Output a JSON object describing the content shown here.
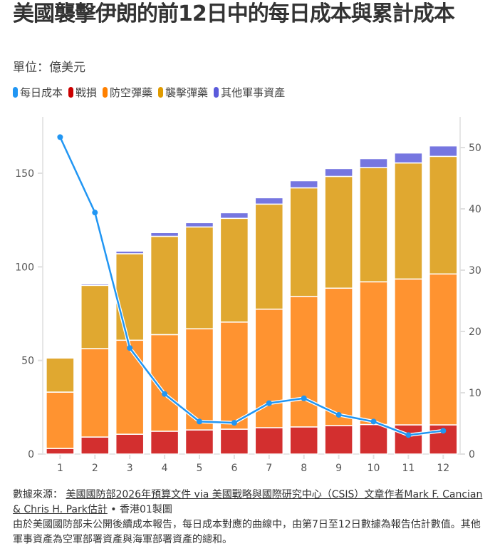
{
  "title": "美國襲擊伊朗的前12日中的每日成本與累計成本",
  "subtitle": "單位：億美元",
  "footer": {
    "source_label": "數據來源：",
    "source_link": "美國國防部2026年預算文件 via 美國戰略與國際研究中心（CSIS）文章作者Mark F. Cancian & Chris H. Park估計",
    "credit": " • 香港01製圖",
    "note": "由於美國國防部未公開後續成本報告，每日成本對應的曲線中，由第7日至12日數據為報告估計數值。其他軍事資產為空軍部署資產與海軍部署資產的總和。"
  },
  "chart_data": {
    "type": "bar",
    "stacked": true,
    "title": "美國襲擊伊朗的前12日中的每日成本與累計成本",
    "subtitle": "單位：億美元",
    "xlabel": "",
    "ylabel": "",
    "categories": [
      "1",
      "2",
      "3",
      "4",
      "5",
      "6",
      "7",
      "8",
      "9",
      "10",
      "11",
      "12"
    ],
    "ylim": [
      0,
      175
    ],
    "yticks": [
      0,
      50,
      100,
      150
    ],
    "y2lim": [
      0,
      53.3
    ],
    "y2ticks": [
      0,
      10,
      20,
      30,
      40,
      50
    ],
    "grid": false,
    "legend_position": "top-left",
    "legend": [
      {
        "name": "每日成本",
        "color": "#2196f3"
      },
      {
        "name": "戰損",
        "color": "#cc0000"
      },
      {
        "name": "防空彈藥",
        "color": "#ff8000"
      },
      {
        "name": "襲擊彈藥",
        "color": "#e09b00"
      },
      {
        "name": "其他軍事資產",
        "color": "#5b5bdb"
      }
    ],
    "series": [
      {
        "name": "戰損",
        "type": "bar",
        "axis": "left",
        "color": "#d32f2f",
        "values": [
          3.0,
          9.1,
          10.6,
          12.2,
          12.9,
          13.3,
          14.1,
          14.5,
          15.2,
          15.8,
          15.6,
          15.6
        ]
      },
      {
        "name": "防空彈藥",
        "type": "bar",
        "axis": "left",
        "color": "#ff9330",
        "values": [
          30.1,
          47.2,
          50.2,
          51.6,
          54.0,
          57.2,
          63.3,
          69.7,
          73.4,
          76.2,
          77.9,
          80.6
        ]
      },
      {
        "name": "襲擊彈藥",
        "type": "bar",
        "axis": "left",
        "color": "#e0a830",
        "values": [
          18.2,
          33.8,
          46.2,
          52.5,
          54.4,
          55.4,
          56.1,
          58.0,
          59.7,
          61.0,
          62.0,
          62.8
        ]
      },
      {
        "name": "其他軍事資產",
        "type": "bar",
        "axis": "left",
        "color": "#7676e0",
        "values": [
          0.2,
          0.8,
          1.4,
          2.0,
          2.3,
          3.0,
          3.4,
          3.8,
          4.2,
          4.8,
          5.3,
          5.6
        ]
      },
      {
        "name": "每日成本",
        "type": "line",
        "axis": "right",
        "color": "#2196f3",
        "values": [
          51.7,
          39.4,
          17.3,
          9.8,
          5.3,
          5.1,
          8.3,
          9.1,
          6.4,
          5.3,
          3.1,
          3.8
        ]
      }
    ]
  }
}
